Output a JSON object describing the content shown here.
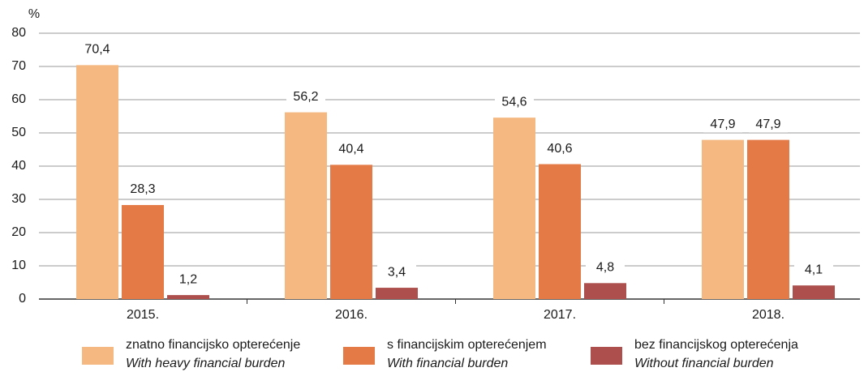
{
  "chart_data": {
    "type": "bar",
    "ylabel": "%",
    "categories": [
      "2015.",
      "2016.",
      "2017.",
      "2018."
    ],
    "series": [
      {
        "name": "znatno financijsko opterećenje",
        "name_en": "With heavy financial burden",
        "color": "#f4b880",
        "values": [
          70.4,
          56.2,
          54.6,
          47.9
        ],
        "value_labels": [
          "70,4",
          "56,2",
          "54,6",
          "47,9"
        ]
      },
      {
        "name": "s financijskim opterećenjem",
        "name_en": "With financial burden",
        "color": "#e47a45",
        "values": [
          28.3,
          40.4,
          40.6,
          47.9
        ],
        "value_labels": [
          "28,3",
          "40,4",
          "40,6",
          "47,9"
        ]
      },
      {
        "name": "bez financijskog opterećenja",
        "name_en": "Without financial burden",
        "color": "#ad4f4c",
        "values": [
          1.2,
          3.4,
          4.8,
          4.1
        ],
        "value_labels": [
          "1,2",
          "3,4",
          "4,8",
          "4,1"
        ]
      }
    ],
    "ylim": [
      0,
      80
    ],
    "yticks": [
      0,
      10,
      20,
      30,
      40,
      50,
      60,
      70,
      80
    ],
    "grid": true
  }
}
